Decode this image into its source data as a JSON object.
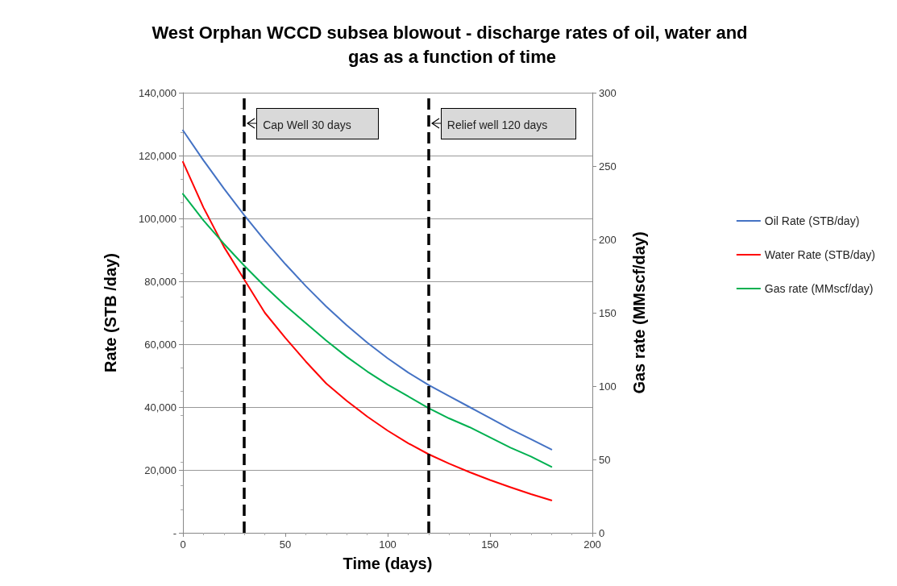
{
  "chart_data": {
    "type": "line",
    "title": "West Orphan WCCD subsea blowout - discharge rates of oil, water and gas as a function of time",
    "xlabel": "Time (days)",
    "ylabel": "Rate (STB /day)",
    "y2label": "Gas rate (MMscf/day)",
    "x": [
      0,
      10,
      20,
      30,
      40,
      50,
      60,
      70,
      80,
      90,
      100,
      110,
      120,
      130,
      140,
      150,
      160,
      170,
      180
    ],
    "series": [
      {
        "name": "Oil Rate (STB/day)",
        "color": "#4472c4",
        "values": [
          128000,
          118500,
          109500,
          101000,
          93000,
          85500,
          78500,
          72000,
          66000,
          60500,
          55500,
          51000,
          47000,
          43500,
          40000,
          36500,
          33000,
          29800,
          26500
        ]
      },
      {
        "name": "Water Rate (STB/day)",
        "color": "#ff0000",
        "values": [
          118000,
          103500,
          91000,
          80500,
          70000,
          62000,
          54500,
          47500,
          42000,
          37000,
          32500,
          28500,
          25000,
          22000,
          19300,
          16800,
          14500,
          12300,
          10300
        ]
      },
      {
        "name": "Gas rate (MMscf/day)",
        "color": "#00b050",
        "axis": "y2",
        "values": [
          231,
          213,
          197,
          182,
          168,
          155,
          143,
          131,
          120,
          110,
          101,
          93,
          85,
          78,
          72,
          65,
          58,
          52,
          45
        ]
      }
    ],
    "xlim": [
      0,
      200
    ],
    "xticks": [
      0,
      50,
      100,
      150,
      200
    ],
    "ylim": [
      0,
      140000
    ],
    "yticks": [
      {
        "value": 0,
        "label": "-"
      },
      {
        "value": 20000,
        "label": "20,000"
      },
      {
        "value": 40000,
        "label": "40,000"
      },
      {
        "value": 60000,
        "label": "60,000"
      },
      {
        "value": 80000,
        "label": "80,000"
      },
      {
        "value": 100000,
        "label": "100,000"
      },
      {
        "value": 120000,
        "label": "120,000"
      },
      {
        "value": 140000,
        "label": "140,000"
      }
    ],
    "y2lim": [
      0,
      300
    ],
    "y2ticks": [
      0,
      50,
      100,
      150,
      200,
      250,
      300
    ],
    "ref_lines": [
      {
        "axis": "x",
        "value": 30,
        "label": "Cap Well 30 days",
        "color": "#000000",
        "line_style": "dashed"
      },
      {
        "axis": "x",
        "value": 120,
        "label": "Relief well 120 days",
        "color": "#000000",
        "line_style": "dashed"
      }
    ],
    "grid": "y",
    "legend": "right",
    "marker": "none",
    "line_style": "solid"
  }
}
